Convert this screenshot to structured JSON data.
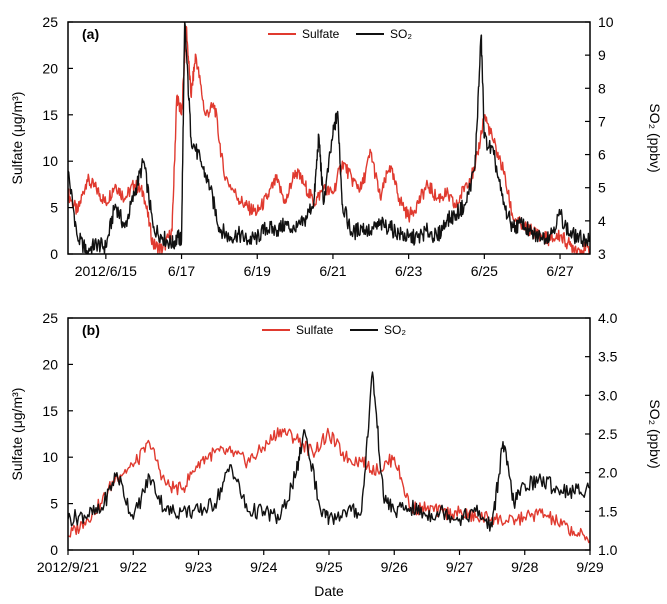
{
  "chart_data": [
    {
      "type": "line",
      "panel_label": "(a)",
      "xlabel": "",
      "ylabel_left": "Sulfate (μg/m³)",
      "ylabel_right": "SO₂ (ppbv)",
      "ylim_left": [
        0,
        25
      ],
      "ylim_right": [
        3,
        10
      ],
      "yticks_left": [
        0,
        5,
        10,
        15,
        20,
        25
      ],
      "yticks_right": [
        3,
        4,
        5,
        6,
        7,
        8,
        9,
        10
      ],
      "xlim_days": [
        "2012-06-14T00:00",
        "2012-06-27T19:00"
      ],
      "xticks": [
        {
          "date": "2012-06-15",
          "label": "2012/6/15"
        },
        {
          "date": "2012-06-17",
          "label": "6/17"
        },
        {
          "date": "2012-06-19",
          "label": "6/19"
        },
        {
          "date": "2012-06-21",
          "label": "6/21"
        },
        {
          "date": "2012-06-23",
          "label": "6/23"
        },
        {
          "date": "2012-06-25",
          "label": "6/25"
        },
        {
          "date": "2012-06-27",
          "label": "6/27"
        }
      ],
      "legend": [
        "Sulfate",
        "SO₂"
      ],
      "legend_position": "top-center",
      "series": [
        {
          "name": "Sulfate",
          "axis": "left",
          "color": "#e03a2f",
          "points": [
            [
              "2012-06-14T00:00",
              6.5
            ],
            [
              "2012-06-14T06:00",
              4.5
            ],
            [
              "2012-06-14T12:00",
              8.0
            ],
            [
              "2012-06-14T18:00",
              7.0
            ],
            [
              "2012-06-15T00:00",
              5.5
            ],
            [
              "2012-06-15T06:00",
              7.5
            ],
            [
              "2012-06-15T12:00",
              6.0
            ],
            [
              "2012-06-15T18:00",
              7.5
            ],
            [
              "2012-06-16T00:00",
              6.5
            ],
            [
              "2012-06-16T06:00",
              1.0
            ],
            [
              "2012-06-16T12:00",
              0.5
            ],
            [
              "2012-06-16T18:00",
              2.5
            ],
            [
              "2012-06-16T21:00",
              17.0
            ],
            [
              "2012-06-17T00:00",
              15.0
            ],
            [
              "2012-06-17T03:00",
              24.5
            ],
            [
              "2012-06-17T06:00",
              17.0
            ],
            [
              "2012-06-17T09:00",
              21.5
            ],
            [
              "2012-06-17T15:00",
              15.0
            ],
            [
              "2012-06-17T21:00",
              16.0
            ],
            [
              "2012-06-18T03:00",
              8.5
            ],
            [
              "2012-06-18T12:00",
              6.0
            ],
            [
              "2012-06-18T18:00",
              5.0
            ],
            [
              "2012-06-19T00:00",
              4.5
            ],
            [
              "2012-06-19T06:00",
              6.0
            ],
            [
              "2012-06-19T12:00",
              8.0
            ],
            [
              "2012-06-19T18:00",
              5.5
            ],
            [
              "2012-06-20T00:00",
              9.0
            ],
            [
              "2012-06-20T06:00",
              7.5
            ],
            [
              "2012-06-20T12:00",
              5.5
            ],
            [
              "2012-06-20T18:00",
              7.0
            ],
            [
              "2012-06-21T00:00",
              6.5
            ],
            [
              "2012-06-21T06:00",
              10.0
            ],
            [
              "2012-06-21T12:00",
              8.0
            ],
            [
              "2012-06-21T18:00",
              7.0
            ],
            [
              "2012-06-22T00:00",
              11.0
            ],
            [
              "2012-06-22T06:00",
              6.0
            ],
            [
              "2012-06-22T12:00",
              9.5
            ],
            [
              "2012-06-22T18:00",
              6.0
            ],
            [
              "2012-06-23T00:00",
              4.0
            ],
            [
              "2012-06-23T06:00",
              5.5
            ],
            [
              "2012-06-23T12:00",
              7.5
            ],
            [
              "2012-06-23T18:00",
              6.0
            ],
            [
              "2012-06-24T00:00",
              6.5
            ],
            [
              "2012-06-24T06:00",
              5.0
            ],
            [
              "2012-06-24T12:00",
              7.5
            ],
            [
              "2012-06-24T18:00",
              9.0
            ],
            [
              "2012-06-25T00:00",
              15.0
            ],
            [
              "2012-06-25T06:00",
              12.0
            ],
            [
              "2012-06-25T12:00",
              9.0
            ],
            [
              "2012-06-25T18:00",
              4.0
            ],
            [
              "2012-06-26T00:00",
              3.0
            ],
            [
              "2012-06-26T06:00",
              2.5
            ],
            [
              "2012-06-26T12:00",
              2.0
            ],
            [
              "2012-06-26T18:00",
              1.5
            ],
            [
              "2012-06-27T00:00",
              2.0
            ],
            [
              "2012-06-27T06:00",
              1.0
            ],
            [
              "2012-06-27T12:00",
              0.5
            ],
            [
              "2012-06-27T19:00",
              0.5
            ]
          ]
        },
        {
          "name": "SO₂",
          "axis": "right",
          "color": "#111111",
          "points": [
            [
              "2012-06-14T00:00",
              5.5
            ],
            [
              "2012-06-14T06:00",
              3.5
            ],
            [
              "2012-06-14T12:00",
              3.1
            ],
            [
              "2012-06-14T18:00",
              3.3
            ],
            [
              "2012-06-15T00:00",
              3.2
            ],
            [
              "2012-06-15T06:00",
              4.5
            ],
            [
              "2012-06-15T12:00",
              3.8
            ],
            [
              "2012-06-15T18:00",
              4.8
            ],
            [
              "2012-06-16T00:00",
              5.8
            ],
            [
              "2012-06-16T06:00",
              3.8
            ],
            [
              "2012-06-16T12:00",
              3.5
            ],
            [
              "2012-06-16T18:00",
              3.3
            ],
            [
              "2012-06-16T22:00",
              3.5
            ],
            [
              "2012-06-17T00:00",
              3.4
            ],
            [
              "2012-06-17T02:00",
              10.0
            ],
            [
              "2012-06-17T06:00",
              6.5
            ],
            [
              "2012-06-17T12:00",
              5.8
            ],
            [
              "2012-06-17T18:00",
              5.0
            ],
            [
              "2012-06-18T00:00",
              3.8
            ],
            [
              "2012-06-18T06:00",
              3.5
            ],
            [
              "2012-06-18T12:00",
              3.6
            ],
            [
              "2012-06-18T18:00",
              3.4
            ],
            [
              "2012-06-19T00:00",
              3.5
            ],
            [
              "2012-06-19T06:00",
              3.8
            ],
            [
              "2012-06-19T12:00",
              3.7
            ],
            [
              "2012-06-19T18:00",
              3.9
            ],
            [
              "2012-06-20T00:00",
              3.7
            ],
            [
              "2012-06-20T06:00",
              4.0
            ],
            [
              "2012-06-20T12:00",
              4.6
            ],
            [
              "2012-06-20T15:00",
              6.6
            ],
            [
              "2012-06-20T18:00",
              4.5
            ],
            [
              "2012-06-21T00:00",
              6.6
            ],
            [
              "2012-06-21T03:00",
              7.3
            ],
            [
              "2012-06-21T06:00",
              4.5
            ],
            [
              "2012-06-21T12:00",
              3.6
            ],
            [
              "2012-06-21T18:00",
              3.8
            ],
            [
              "2012-06-22T00:00",
              3.7
            ],
            [
              "2012-06-22T06:00",
              3.9
            ],
            [
              "2012-06-22T12:00",
              3.8
            ],
            [
              "2012-06-22T18:00",
              3.6
            ],
            [
              "2012-06-23T00:00",
              3.5
            ],
            [
              "2012-06-23T06:00",
              3.5
            ],
            [
              "2012-06-23T12:00",
              3.7
            ],
            [
              "2012-06-23T18:00",
              3.5
            ],
            [
              "2012-06-24T00:00",
              4.0
            ],
            [
              "2012-06-24T06:00",
              4.2
            ],
            [
              "2012-06-24T12:00",
              4.5
            ],
            [
              "2012-06-24T18:00",
              5.6
            ],
            [
              "2012-06-24T22:00",
              9.6
            ],
            [
              "2012-06-25T00:00",
              6.5
            ],
            [
              "2012-06-25T06:00",
              6.0
            ],
            [
              "2012-06-25T12:00",
              4.5
            ],
            [
              "2012-06-25T18:00",
              3.8
            ],
            [
              "2012-06-26T00:00",
              3.9
            ],
            [
              "2012-06-26T06:00",
              3.6
            ],
            [
              "2012-06-26T12:00",
              3.5
            ],
            [
              "2012-06-26T18:00",
              3.6
            ],
            [
              "2012-06-27T00:00",
              4.2
            ],
            [
              "2012-06-27T06:00",
              3.6
            ],
            [
              "2012-06-27T12:00",
              3.5
            ],
            [
              "2012-06-27T19:00",
              3.4
            ]
          ]
        }
      ]
    },
    {
      "type": "line",
      "panel_label": "(b)",
      "xlabel": "Date",
      "ylabel_left": "Sulfate (μg/m³)",
      "ylabel_right": "SO₂ (ppbv)",
      "ylim_left": [
        0,
        25
      ],
      "ylim_right": [
        1.0,
        4.0
      ],
      "yticks_left": [
        0,
        5,
        10,
        15,
        20,
        25
      ],
      "yticks_right": [
        "1.0",
        "1.5",
        "2.0",
        "2.5",
        "3.0",
        "3.5",
        "4.0"
      ],
      "xlim_days": [
        "2012-09-21T00:00",
        "2012-09-29T00:00"
      ],
      "xticks": [
        {
          "date": "2012-09-21",
          "label": "2012/9/21"
        },
        {
          "date": "2012-09-22",
          "label": "9/22"
        },
        {
          "date": "2012-09-23",
          "label": "9/23"
        },
        {
          "date": "2012-09-24",
          "label": "9/24"
        },
        {
          "date": "2012-09-25",
          "label": "9/25"
        },
        {
          "date": "2012-09-26",
          "label": "9/26"
        },
        {
          "date": "2012-09-27",
          "label": "9/27"
        },
        {
          "date": "2012-09-28",
          "label": "9/28"
        },
        {
          "date": "2012-09-29",
          "label": "9/29"
        }
      ],
      "legend": [
        "Sulfate",
        "SO₂"
      ],
      "legend_position": "top-center",
      "series": [
        {
          "name": "Sulfate",
          "axis": "left",
          "color": "#e03a2f",
          "points": [
            [
              "2012-09-21T00:00",
              1.5
            ],
            [
              "2012-09-21T06:00",
              3.0
            ],
            [
              "2012-09-21T12:00",
              5.0
            ],
            [
              "2012-09-21T18:00",
              8.0
            ],
            [
              "2012-09-22T00:00",
              9.0
            ],
            [
              "2012-09-22T06:00",
              11.5
            ],
            [
              "2012-09-22T12:00",
              7.0
            ],
            [
              "2012-09-22T18:00",
              6.5
            ],
            [
              "2012-09-23T00:00",
              9.5
            ],
            [
              "2012-09-23T06:00",
              10.5
            ],
            [
              "2012-09-23T12:00",
              10.5
            ],
            [
              "2012-09-23T18:00",
              9.5
            ],
            [
              "2012-09-24T00:00",
              11.0
            ],
            [
              "2012-09-24T06:00",
              13.0
            ],
            [
              "2012-09-24T12:00",
              12.0
            ],
            [
              "2012-09-24T18:00",
              10.5
            ],
            [
              "2012-09-25T00:00",
              12.5
            ],
            [
              "2012-09-25T06:00",
              10.0
            ],
            [
              "2012-09-25T12:00",
              9.5
            ],
            [
              "2012-09-25T18:00",
              8.5
            ],
            [
              "2012-09-26T00:00",
              10.0
            ],
            [
              "2012-09-26T06:00",
              4.5
            ],
            [
              "2012-09-26T12:00",
              4.5
            ],
            [
              "2012-09-26T18:00",
              4.0
            ],
            [
              "2012-09-27T00:00",
              4.0
            ],
            [
              "2012-09-27T06:00",
              3.5
            ],
            [
              "2012-09-27T12:00",
              3.5
            ],
            [
              "2012-09-27T18:00",
              3.0
            ],
            [
              "2012-09-28T00:00",
              3.5
            ],
            [
              "2012-09-28T06:00",
              4.0
            ],
            [
              "2012-09-28T12:00",
              3.0
            ],
            [
              "2012-09-28T18:00",
              2.0
            ],
            [
              "2012-09-29T00:00",
              1.0
            ]
          ]
        },
        {
          "name": "SO₂",
          "axis": "right",
          "color": "#111111",
          "points": [
            [
              "2012-09-21T00:00",
              1.4
            ],
            [
              "2012-09-21T06:00",
              1.45
            ],
            [
              "2012-09-21T12:00",
              1.5
            ],
            [
              "2012-09-21T18:00",
              2.0
            ],
            [
              "2012-09-22T00:00",
              1.4
            ],
            [
              "2012-09-22T06:00",
              1.95
            ],
            [
              "2012-09-22T12:00",
              1.5
            ],
            [
              "2012-09-22T18:00",
              1.5
            ],
            [
              "2012-09-23T00:00",
              1.5
            ],
            [
              "2012-09-23T06:00",
              1.6
            ],
            [
              "2012-09-23T12:00",
              2.1
            ],
            [
              "2012-09-23T18:00",
              1.5
            ],
            [
              "2012-09-24T00:00",
              1.5
            ],
            [
              "2012-09-24T06:00",
              1.4
            ],
            [
              "2012-09-24T12:00",
              2.0
            ],
            [
              "2012-09-24T15:00",
              2.55
            ],
            [
              "2012-09-24T21:00",
              1.5
            ],
            [
              "2012-09-25T00:00",
              1.4
            ],
            [
              "2012-09-25T06:00",
              1.5
            ],
            [
              "2012-09-25T12:00",
              1.5
            ],
            [
              "2012-09-25T16:00",
              3.3
            ],
            [
              "2012-09-25T20:00",
              1.7
            ],
            [
              "2012-09-26T00:00",
              1.5
            ],
            [
              "2012-09-26T06:00",
              1.55
            ],
            [
              "2012-09-26T12:00",
              1.45
            ],
            [
              "2012-09-26T18:00",
              1.5
            ],
            [
              "2012-09-27T00:00",
              1.4
            ],
            [
              "2012-09-27T06:00",
              1.5
            ],
            [
              "2012-09-27T12:00",
              1.3
            ],
            [
              "2012-09-27T16:00",
              2.4
            ],
            [
              "2012-09-27T20:00",
              1.6
            ],
            [
              "2012-09-28T00:00",
              1.85
            ],
            [
              "2012-09-28T06:00",
              1.9
            ],
            [
              "2012-09-28T12:00",
              1.8
            ],
            [
              "2012-09-28T18:00",
              1.75
            ],
            [
              "2012-09-29T00:00",
              1.8
            ]
          ]
        }
      ]
    }
  ]
}
